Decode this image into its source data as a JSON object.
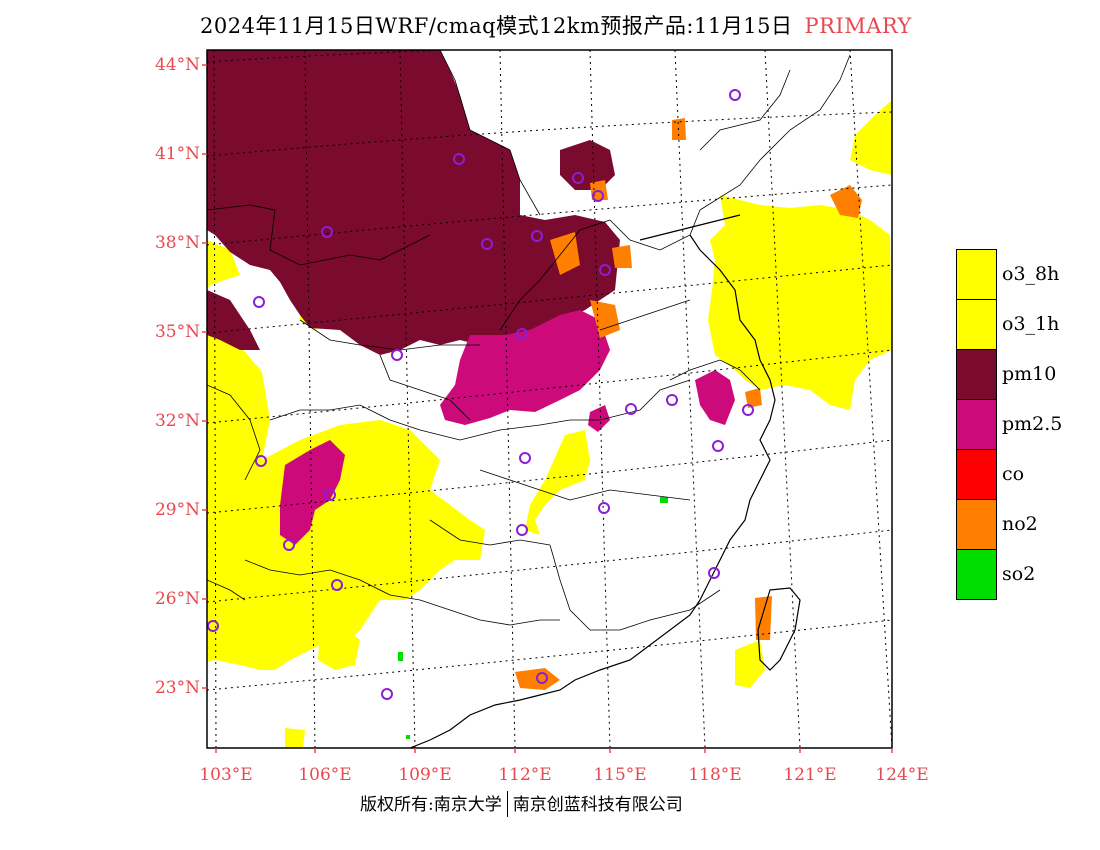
{
  "header": {
    "title": "2024年11月15日WRF/cmaq模式12km预报产品:11月15日",
    "tag": "PRIMARY",
    "tag_color": "#e8484f"
  },
  "map": {
    "lat_labels": [
      "44°N",
      "41°N",
      "38°N",
      "35°N",
      "32°N",
      "29°N",
      "26°N",
      "23°N"
    ],
    "lon_labels": [
      "103°E",
      "106°E",
      "109°E",
      "112°E",
      "115°E",
      "118°E",
      "121°E",
      "124°E"
    ],
    "label_color": "#e8484f",
    "colors": {
      "o3": "#ffff00",
      "pm10": "#7a0a2e",
      "pm25": "#cc0a7a",
      "co": "#ff0000",
      "no2": "#ff7f00",
      "so2": "#00dd00",
      "station_marker": "#8a1fd8"
    }
  },
  "legend": {
    "items": [
      {
        "label": "o3_8h",
        "color": "#ffff00"
      },
      {
        "label": "o3_1h",
        "color": "#ffff00"
      },
      {
        "label": "pm10",
        "color": "#7a0a2e"
      },
      {
        "label": "pm2.5",
        "color": "#cc0a7a"
      },
      {
        "label": "co",
        "color": "#ff0000"
      },
      {
        "label": "no2",
        "color": "#ff7f00"
      },
      {
        "label": "so2",
        "color": "#00dd00"
      }
    ]
  },
  "footer": {
    "left": "版权所有:南京大学",
    "right": "南京创蓝科技有限公司"
  }
}
